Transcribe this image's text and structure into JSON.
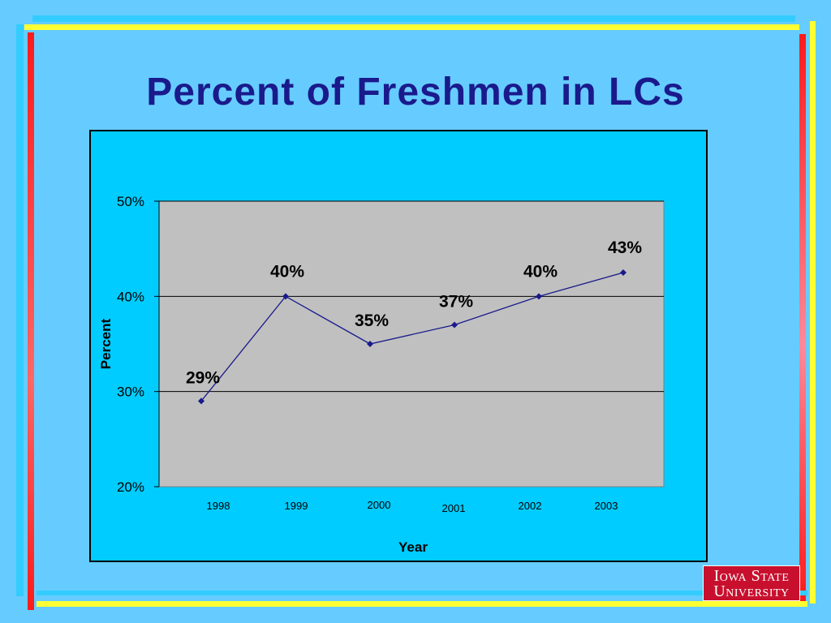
{
  "slide": {
    "title": "Percent of Freshmen in LCs"
  },
  "logo": {
    "line1": "Iowa State",
    "line2": "University"
  },
  "colors": {
    "background": "#66ccff",
    "chart_area": "#00ccff",
    "plot_area": "#c0c0c0",
    "series_line": "#1a1a8c",
    "title": "#1a1a8c",
    "accent_yellow": "#ffff33",
    "accent_red": "#ff1a1a"
  },
  "chart_data": {
    "type": "line",
    "title": "",
    "xlabel": "Year",
    "ylabel": "Percent",
    "categories": [
      "1998",
      "1999",
      "2000",
      "2001",
      "2002",
      "2003"
    ],
    "series": [
      {
        "values": [
          29,
          40,
          35,
          37,
          40,
          42.5
        ],
        "data_labels": [
          "29%",
          "40%",
          "35%",
          "37%",
          "40%",
          "43%"
        ]
      }
    ],
    "ylim": [
      20,
      50
    ],
    "yticks": [
      "20%",
      "30%",
      "40%",
      "50%"
    ],
    "grid": true,
    "legend": "none"
  }
}
